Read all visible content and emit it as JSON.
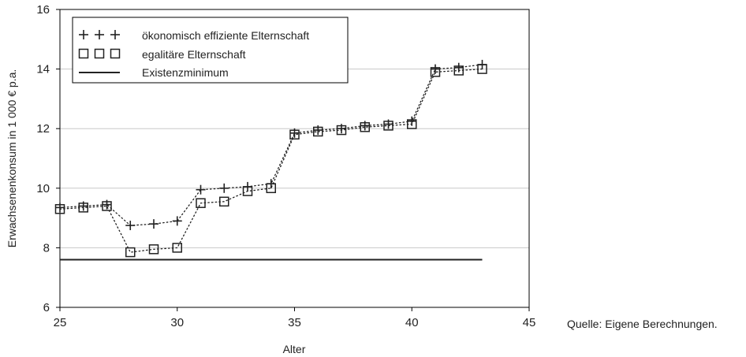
{
  "chart_data": {
    "type": "line",
    "xlabel": "Alter",
    "ylabel": "Erwachsenenkonsum in 1 000 € p.a.",
    "xlim": [
      25,
      45
    ],
    "ylim": [
      6,
      16
    ],
    "xticks": [
      25,
      30,
      35,
      40,
      45
    ],
    "yticks": [
      6,
      8,
      10,
      12,
      14,
      16
    ],
    "grid": "horizontal",
    "legend_position": "top-left",
    "series": [
      {
        "name": "ökonomisch effiziente Elternschaft",
        "marker": "plus",
        "line": "dotted",
        "x": [
          25,
          26,
          27,
          28,
          29,
          30,
          31,
          32,
          33,
          34,
          35,
          36,
          37,
          38,
          39,
          40,
          41,
          42,
          43
        ],
        "y": [
          9.35,
          9.4,
          9.45,
          8.75,
          8.8,
          8.9,
          9.95,
          10.0,
          10.05,
          10.15,
          11.85,
          11.95,
          12.0,
          12.1,
          12.15,
          12.25,
          14.0,
          14.05,
          14.15
        ]
      },
      {
        "name": "egalitäre Elternschaft",
        "marker": "square",
        "line": "dotted",
        "x": [
          25,
          26,
          27,
          28,
          29,
          30,
          31,
          32,
          33,
          34,
          35,
          36,
          37,
          38,
          39,
          40,
          41,
          42,
          43
        ],
        "y": [
          9.3,
          9.35,
          9.4,
          7.85,
          7.95,
          8.0,
          9.5,
          9.55,
          9.9,
          10.0,
          11.8,
          11.9,
          11.95,
          12.05,
          12.1,
          12.15,
          13.9,
          13.95,
          14.0
        ]
      },
      {
        "name": "Existenzminimum",
        "marker": "none",
        "line": "solid",
        "x": [
          25,
          43
        ],
        "y": [
          7.6,
          7.6
        ]
      }
    ],
    "colors": {
      "axis": "#000000",
      "grid": "#c8c8c8",
      "series": "#222222"
    }
  },
  "source_note": "Quelle: Eigene Berechnungen."
}
